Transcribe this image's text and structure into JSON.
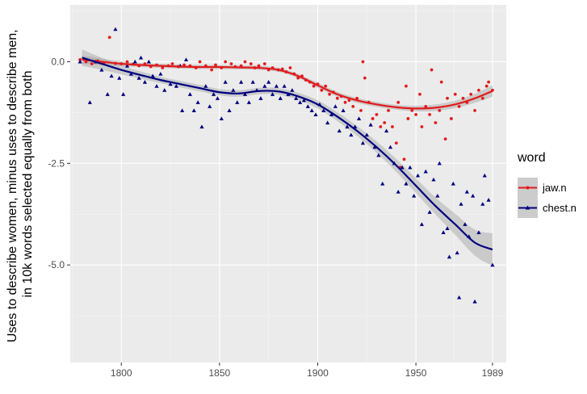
{
  "chart_data": {
    "type": "scatter",
    "title": "",
    "xlabel": "",
    "ylabel_lines": [
      "Uses to describe women, minus uses to describe men,",
      "in 10k words selected equally from both"
    ],
    "xlim": [
      1774,
      1996
    ],
    "ylim": [
      -7.4,
      1.4
    ],
    "x_ticks": [
      1800,
      1850,
      1900,
      1950,
      1989
    ],
    "x_tick_labels": [
      "1800",
      "1850",
      "1900",
      "1950",
      "1989"
    ],
    "y_ticks": [
      0,
      -2.5,
      -5
    ],
    "y_tick_labels": [
      "0.0",
      "-2.5",
      "-5.0"
    ],
    "legend": {
      "title": "word",
      "position": "right",
      "entries": [
        {
          "label": "jaw.n",
          "color": "#e31a1c",
          "marker": "circle"
        },
        {
          "label": "chest.n",
          "color": "#000080",
          "marker": "triangle"
        }
      ]
    },
    "series": [
      {
        "name": "jaw.n",
        "color": "#e31a1c",
        "marker": "circle",
        "smooth": {
          "x": [
            1780,
            1790,
            1800,
            1810,
            1820,
            1830,
            1840,
            1850,
            1860,
            1870,
            1880,
            1890,
            1900,
            1910,
            1920,
            1930,
            1940,
            1950,
            1960,
            1970,
            1980,
            1989
          ],
          "y": [
            0.05,
            0.0,
            -0.05,
            -0.08,
            -0.1,
            -0.12,
            -0.13,
            -0.13,
            -0.14,
            -0.15,
            -0.2,
            -0.35,
            -0.58,
            -0.8,
            -0.95,
            -1.05,
            -1.12,
            -1.15,
            -1.13,
            -1.05,
            -0.9,
            -0.72
          ],
          "band": [
            0.1,
            0.08,
            0.06,
            0.05,
            0.05,
            0.05,
            0.05,
            0.05,
            0.05,
            0.05,
            0.05,
            0.05,
            0.06,
            0.06,
            0.06,
            0.06,
            0.06,
            0.07,
            0.08,
            0.09,
            0.11,
            0.14
          ]
        },
        "points": [
          [
            1779,
            0.05
          ],
          [
            1782,
            0.0
          ],
          [
            1785,
            -0.05
          ],
          [
            1788,
            0.02
          ],
          [
            1791,
            -0.03
          ],
          [
            1794,
            0.6
          ],
          [
            1797,
            -0.04
          ],
          [
            1800,
            -0.05
          ],
          [
            1803,
            0.0
          ],
          [
            1806,
            -0.06
          ],
          [
            1809,
            -0.1
          ],
          [
            1812,
            -0.05
          ],
          [
            1815,
            -0.12
          ],
          [
            1818,
            -0.08
          ],
          [
            1821,
            -0.15
          ],
          [
            1824,
            -0.1
          ],
          [
            1826,
            -0.05
          ],
          [
            1829,
            -0.12
          ],
          [
            1832,
            -0.08
          ],
          [
            1835,
            -0.1
          ],
          [
            1838,
            -0.15
          ],
          [
            1840,
            0.0
          ],
          [
            1843,
            -0.1
          ],
          [
            1846,
            -0.2
          ],
          [
            1848,
            -0.08
          ],
          [
            1851,
            -0.15
          ],
          [
            1853,
            0.0
          ],
          [
            1856,
            -0.05
          ],
          [
            1858,
            -0.12
          ],
          [
            1861,
            -0.1
          ],
          [
            1863,
            0.0
          ],
          [
            1866,
            -0.05
          ],
          [
            1868,
            -0.15
          ],
          [
            1870,
            -0.1
          ],
          [
            1873,
            -0.05
          ],
          [
            1875,
            -0.2
          ],
          [
            1877,
            -0.15
          ],
          [
            1880,
            -0.2
          ],
          [
            1882,
            -0.18
          ],
          [
            1884,
            -0.25
          ],
          [
            1886,
            -0.15
          ],
          [
            1888,
            -0.3
          ],
          [
            1890,
            -0.4
          ],
          [
            1892,
            -0.35
          ],
          [
            1894,
            -0.45
          ],
          [
            1896,
            -0.5
          ],
          [
            1898,
            -0.6
          ],
          [
            1900,
            -0.55
          ],
          [
            1902,
            -0.7
          ],
          [
            1904,
            -0.6
          ],
          [
            1906,
            -0.8
          ],
          [
            1908,
            -0.75
          ],
          [
            1910,
            -0.9
          ],
          [
            1912,
            -0.85
          ],
          [
            1914,
            -1.0
          ],
          [
            1916,
            -0.95
          ],
          [
            1918,
            -1.1
          ],
          [
            1920,
            -0.9
          ],
          [
            1922,
            -1.2
          ],
          [
            1923,
            0.0
          ],
          [
            1924,
            -0.4
          ],
          [
            1926,
            -1.0
          ],
          [
            1928,
            -1.4
          ],
          [
            1930,
            -1.3
          ],
          [
            1932,
            -1.6
          ],
          [
            1934,
            -1.5
          ],
          [
            1936,
            -1.2
          ],
          [
            1938,
            -1.6
          ],
          [
            1940,
            -2.0
          ],
          [
            1941,
            -1.0
          ],
          [
            1942,
            -2.6
          ],
          [
            1944,
            -2.4
          ],
          [
            1945,
            -0.6
          ],
          [
            1946,
            -1.4
          ],
          [
            1948,
            -1.2
          ],
          [
            1950,
            -1.3
          ],
          [
            1952,
            -0.8
          ],
          [
            1953,
            -1.6
          ],
          [
            1955,
            -1.1
          ],
          [
            1957,
            -1.3
          ],
          [
            1958,
            -0.2
          ],
          [
            1960,
            -1.5
          ],
          [
            1962,
            -1.2
          ],
          [
            1963,
            -0.5
          ],
          [
            1965,
            -1.9
          ],
          [
            1966,
            -0.9
          ],
          [
            1968,
            -1.4
          ],
          [
            1970,
            -0.8
          ],
          [
            1972,
            -1.1
          ],
          [
            1974,
            -0.9
          ],
          [
            1976,
            -1.0
          ],
          [
            1978,
            -0.8
          ],
          [
            1980,
            -1.2
          ],
          [
            1982,
            -0.7
          ],
          [
            1984,
            -0.9
          ],
          [
            1986,
            -0.6
          ],
          [
            1987,
            -0.5
          ],
          [
            1989,
            -0.7
          ]
        ]
      },
      {
        "name": "chest.n",
        "color": "#000080",
        "marker": "triangle",
        "smooth": {
          "x": [
            1780,
            1790,
            1800,
            1810,
            1820,
            1830,
            1840,
            1850,
            1860,
            1870,
            1880,
            1890,
            1900,
            1910,
            1920,
            1930,
            1940,
            1950,
            1960,
            1970,
            1980,
            1989
          ],
          "y": [
            0.1,
            -0.05,
            -0.2,
            -0.33,
            -0.45,
            -0.55,
            -0.65,
            -0.75,
            -0.78,
            -0.72,
            -0.73,
            -0.85,
            -1.05,
            -1.35,
            -1.7,
            -2.1,
            -2.55,
            -3.05,
            -3.55,
            -4.0,
            -4.45,
            -4.62
          ],
          "band": [
            0.2,
            0.15,
            0.11,
            0.09,
            0.08,
            0.08,
            0.08,
            0.08,
            0.08,
            0.08,
            0.08,
            0.09,
            0.1,
            0.11,
            0.12,
            0.14,
            0.16,
            0.18,
            0.21,
            0.26,
            0.32,
            0.4
          ]
        },
        "points": [
          [
            1779,
            0.0
          ],
          [
            1784,
            -1.0
          ],
          [
            1787,
            0.0
          ],
          [
            1790,
            -0.2
          ],
          [
            1793,
            -0.8
          ],
          [
            1795,
            -0.35
          ],
          [
            1797,
            0.8
          ],
          [
            1799,
            -0.4
          ],
          [
            1801,
            -0.8
          ],
          [
            1803,
            -0.1
          ],
          [
            1805,
            -0.3
          ],
          [
            1807,
            0.0
          ],
          [
            1809,
            -0.4
          ],
          [
            1810,
            0.1
          ],
          [
            1812,
            -0.5
          ],
          [
            1814,
            0.0
          ],
          [
            1816,
            -0.35
          ],
          [
            1818,
            -0.6
          ],
          [
            1820,
            -0.3
          ],
          [
            1822,
            -0.7
          ],
          [
            1825,
            -0.55
          ],
          [
            1828,
            -0.6
          ],
          [
            1830,
            -0.1
          ],
          [
            1831,
            -1.2
          ],
          [
            1833,
            0.05
          ],
          [
            1835,
            -0.8
          ],
          [
            1837,
            -1.2
          ],
          [
            1839,
            -1.0
          ],
          [
            1841,
            -1.6
          ],
          [
            1843,
            -0.6
          ],
          [
            1845,
            -1.1
          ],
          [
            1847,
            -0.8
          ],
          [
            1849,
            -0.9
          ],
          [
            1851,
            -1.4
          ],
          [
            1853,
            -0.5
          ],
          [
            1855,
            -1.2
          ],
          [
            1857,
            -0.7
          ],
          [
            1859,
            -1.0
          ],
          [
            1861,
            -0.5
          ],
          [
            1863,
            -0.8
          ],
          [
            1865,
            -1.0
          ],
          [
            1867,
            -0.5
          ],
          [
            1869,
            -0.7
          ],
          [
            1871,
            -0.9
          ],
          [
            1873,
            -0.6
          ],
          [
            1875,
            -0.5
          ],
          [
            1877,
            -0.8
          ],
          [
            1879,
            -0.6
          ],
          [
            1881,
            -0.9
          ],
          [
            1883,
            -0.6
          ],
          [
            1885,
            -0.8
          ],
          [
            1887,
            -0.7
          ],
          [
            1889,
            -0.9
          ],
          [
            1891,
            -1.0
          ],
          [
            1893,
            -0.95
          ],
          [
            1895,
            -1.1
          ],
          [
            1897,
            -1.2
          ],
          [
            1899,
            -1.3
          ],
          [
            1901,
            -1.05
          ],
          [
            1903,
            -1.2
          ],
          [
            1905,
            -1.5
          ],
          [
            1907,
            -1.3
          ],
          [
            1909,
            -1.1
          ],
          [
            1911,
            -1.7
          ],
          [
            1913,
            -1.2
          ],
          [
            1915,
            -1.6
          ],
          [
            1917,
            -1.8
          ],
          [
            1919,
            -1.6
          ],
          [
            1921,
            -1.4
          ],
          [
            1923,
            -2.0
          ],
          [
            1925,
            -1.8
          ],
          [
            1927,
            -1.55
          ],
          [
            1929,
            -2.1
          ],
          [
            1931,
            -2.3
          ],
          [
            1933,
            -3.0
          ],
          [
            1935,
            -1.7
          ],
          [
            1937,
            -2.1
          ],
          [
            1939,
            -2.5
          ],
          [
            1941,
            -3.2
          ],
          [
            1943,
            -2.6
          ],
          [
            1945,
            -3.0
          ],
          [
            1947,
            -2.6
          ],
          [
            1949,
            -3.3
          ],
          [
            1951,
            -2.8
          ],
          [
            1953,
            -4.0
          ],
          [
            1955,
            -2.7
          ],
          [
            1957,
            -3.7
          ],
          [
            1959,
            -2.9
          ],
          [
            1961,
            -3.3
          ],
          [
            1962,
            -2.5
          ],
          [
            1964,
            -4.2
          ],
          [
            1966,
            -4.1
          ],
          [
            1967,
            -4.8
          ],
          [
            1969,
            -3.0
          ],
          [
            1971,
            -4.7
          ],
          [
            1972,
            -5.8
          ],
          [
            1973,
            -3.5
          ],
          [
            1975,
            -4.0
          ],
          [
            1976,
            -3.2
          ],
          [
            1977,
            -4.3
          ],
          [
            1979,
            -3.3
          ],
          [
            1980,
            -5.9
          ],
          [
            1982,
            -4.2
          ],
          [
            1984,
            -3.5
          ],
          [
            1985,
            -2.8
          ],
          [
            1987,
            -3.4
          ],
          [
            1989,
            -5.0
          ]
        ]
      }
    ]
  }
}
